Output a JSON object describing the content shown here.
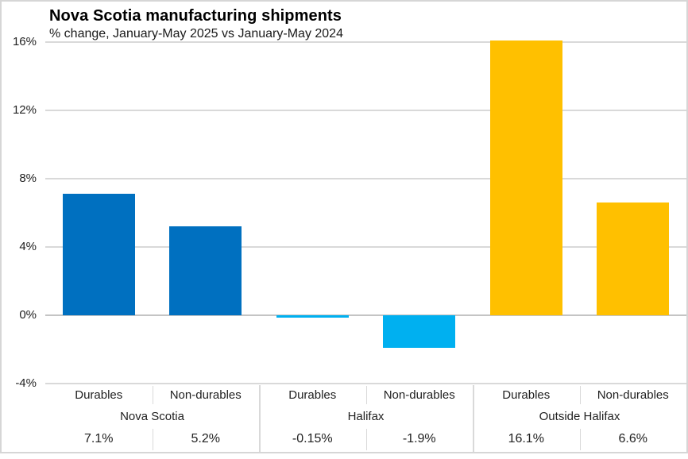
{
  "header": {
    "title": "Nova Scotia manufacturing shipments",
    "subtitle": "% change, January-May 2025 vs January-May 2024"
  },
  "colors": {
    "gridline": "#d9d9d9",
    "zero_line": "#c4c4c4",
    "frame_border": "#d6d6d6",
    "text": "#212121",
    "nova_scotia_blue": "#0070C0",
    "halifax_cyan": "#00B0F0",
    "outside_halifax_gold": "#FFC000"
  },
  "chart_data": {
    "type": "bar",
    "title": "Nova Scotia manufacturing shipments",
    "subtitle": "% change, January-May 2025 vs January-May 2024",
    "ylabel": "% change",
    "ylim": [
      -4,
      16
    ],
    "grid": true,
    "legend_position": "none",
    "yticks": [
      {
        "value": 16,
        "label": "16%"
      },
      {
        "value": 12,
        "label": "12%"
      },
      {
        "value": 8,
        "label": "8%"
      },
      {
        "value": 4,
        "label": "4%"
      },
      {
        "value": 0,
        "label": "0%"
      },
      {
        "value": -4,
        "label": "-4%"
      }
    ],
    "groups": [
      {
        "name": "Nova Scotia",
        "color": "#0070C0",
        "bars": [
          {
            "category": "Durables",
            "value": 7.1,
            "label": "7.1%"
          },
          {
            "category": "Non-durables",
            "value": 5.2,
            "label": "5.2%"
          }
        ]
      },
      {
        "name": "Halifax",
        "color": "#00B0F0",
        "bars": [
          {
            "category": "Durables",
            "value": -0.15,
            "label": "-0.15%"
          },
          {
            "category": "Non-durables",
            "value": -1.9,
            "label": "-1.9%"
          }
        ]
      },
      {
        "name": "Outside Halifax",
        "color": "#FFC000",
        "bars": [
          {
            "category": "Durables",
            "value": 16.1,
            "label": "16.1%"
          },
          {
            "category": "Non-durables",
            "value": 6.6,
            "label": "6.6%"
          }
        ]
      }
    ]
  }
}
